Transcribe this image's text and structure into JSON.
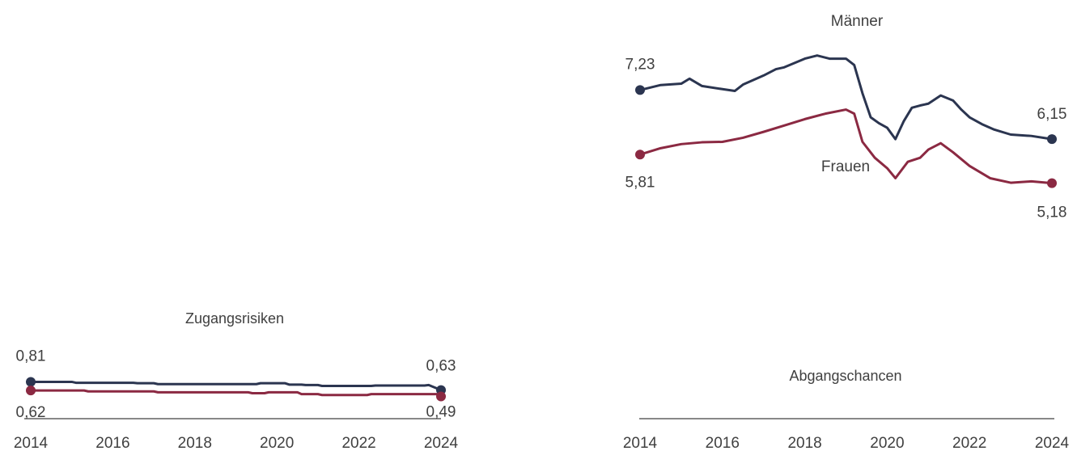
{
  "chart_data": [
    {
      "type": "line",
      "series": [
        {
          "name": "Männer",
          "color": "#2b3550",
          "x": [
            2014,
            2014.5,
            2015,
            2015.2,
            2015.5,
            2016,
            2016.3,
            2016.5,
            2017,
            2017.3,
            2017.5,
            2018,
            2018.3,
            2018.6,
            2019,
            2019.2,
            2019.4,
            2019.6,
            2019.8,
            2020,
            2020.2,
            2020.4,
            2020.6,
            2020.8,
            2021,
            2021.3,
            2021.6,
            2021.8,
            2022,
            2022.3,
            2022.6,
            2023,
            2023.5,
            2024
          ],
          "values": [
            7.23,
            7.34,
            7.37,
            7.48,
            7.32,
            7.25,
            7.21,
            7.35,
            7.55,
            7.69,
            7.73,
            7.92,
            7.99,
            7.92,
            7.92,
            7.78,
            7.16,
            6.63,
            6.5,
            6.4,
            6.15,
            6.54,
            6.84,
            6.89,
            6.93,
            7.11,
            7.0,
            6.8,
            6.63,
            6.48,
            6.36,
            6.25,
            6.22,
            6.15
          ],
          "value_labels": [
            "7,23",
            null,
            null,
            null,
            null,
            null,
            null,
            null,
            null,
            null,
            null,
            null,
            null,
            null,
            null,
            null,
            null,
            null,
            null,
            null,
            null,
            null,
            null,
            null,
            null,
            null,
            null,
            null,
            null,
            null,
            null,
            null,
            null,
            "6,15"
          ]
        },
        {
          "name": "Frauen",
          "color": "#8b2942",
          "x": [
            2014,
            2014.5,
            2015,
            2015.5,
            2016,
            2016.5,
            2017,
            2017.5,
            2018,
            2018.5,
            2019,
            2019.2,
            2019.4,
            2019.7,
            2020,
            2020.2,
            2020.5,
            2020.8,
            2021,
            2021.3,
            2021.6,
            2022,
            2022.5,
            2023,
            2023.5,
            2024
          ],
          "values": [
            5.81,
            5.95,
            6.04,
            6.08,
            6.09,
            6.18,
            6.31,
            6.45,
            6.59,
            6.71,
            6.8,
            6.71,
            6.09,
            5.74,
            5.51,
            5.29,
            5.65,
            5.74,
            5.92,
            6.06,
            5.86,
            5.56,
            5.29,
            5.19,
            5.22,
            5.18
          ],
          "value_labels": [
            "5,81",
            null,
            null,
            null,
            null,
            null,
            null,
            null,
            null,
            null,
            null,
            null,
            null,
            null,
            null,
            null,
            null,
            null,
            null,
            null,
            null,
            null,
            null,
            null,
            null,
            "5,18"
          ]
        }
      ],
      "xlim": [
        2014,
        2024
      ],
      "ylim": [
        4,
        8.5
      ]
    },
    {
      "type": "line",
      "title": "Zugangsrisiken",
      "series": [
        {
          "name": "Männer",
          "color": "#2b3550",
          "x": [
            2014,
            2015,
            2015.1,
            2016.5,
            2016.6,
            2017,
            2017.1,
            2019.5,
            2019.6,
            2020.2,
            2020.3,
            2020.6,
            2020.7,
            2021,
            2021.1,
            2022.3,
            2022.4,
            2023.6,
            2023.7,
            2024
          ],
          "values": [
            0.81,
            0.81,
            0.79,
            0.79,
            0.78,
            0.78,
            0.76,
            0.76,
            0.78,
            0.78,
            0.75,
            0.75,
            0.74,
            0.74,
            0.72,
            0.72,
            0.73,
            0.73,
            0.74,
            0.63
          ],
          "value_labels": [
            "0,81",
            null,
            null,
            null,
            null,
            null,
            null,
            null,
            null,
            null,
            null,
            null,
            null,
            null,
            null,
            null,
            null,
            null,
            null,
            "0,63"
          ]
        },
        {
          "name": "Frauen",
          "color": "#8b2942",
          "x": [
            2014,
            2015.3,
            2015.4,
            2017,
            2017.1,
            2019.3,
            2019.4,
            2019.7,
            2019.8,
            2020.5,
            2020.6,
            2021,
            2021.1,
            2022.2,
            2022.3,
            2023.9,
            2024
          ],
          "values": [
            0.62,
            0.62,
            0.6,
            0.6,
            0.58,
            0.58,
            0.56,
            0.56,
            0.58,
            0.58,
            0.54,
            0.54,
            0.52,
            0.52,
            0.54,
            0.54,
            0.49
          ],
          "value_labels": [
            "0,62",
            null,
            null,
            null,
            null,
            null,
            null,
            null,
            null,
            null,
            null,
            null,
            null,
            null,
            null,
            null,
            "0,49"
          ]
        }
      ],
      "xlim": [
        2014,
        2024
      ],
      "ylim": [
        0,
        4.5
      ],
      "xticks": [
        2014,
        2016,
        2018,
        2020,
        2022,
        2024
      ]
    },
    {
      "type": "line",
      "title": "Abgangschancen",
      "series": [],
      "xlim": [
        2014,
        2024
      ],
      "ylim": [
        0,
        4.5
      ],
      "xticks": [
        2014,
        2016,
        2018,
        2020,
        2022,
        2024
      ]
    }
  ]
}
